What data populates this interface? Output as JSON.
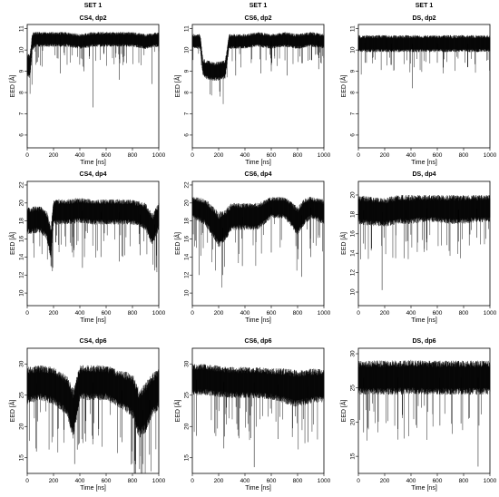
{
  "chart_data": [
    {
      "type": "line",
      "panel": "CS4-dp2",
      "set_label": "SET 1",
      "title": "CS4, dp2",
      "xlabel": "Time [ns]",
      "ylabel": "EED [Å]",
      "xlim": [
        0,
        1000
      ],
      "ylim": [
        5.4,
        11.2
      ],
      "xticks": [
        0,
        200,
        400,
        600,
        800,
        1000
      ],
      "yticks": [
        6,
        7,
        8,
        9,
        10,
        11
      ],
      "series": [
        {
          "x": [
            0,
            20,
            40,
            60,
            100,
            200,
            300,
            400,
            500,
            600,
            700,
            800,
            900,
            1000
          ],
          "y": [
            9.3,
            9.2,
            10.4,
            10.5,
            10.5,
            10.5,
            10.5,
            10.4,
            10.5,
            10.5,
            10.5,
            10.5,
            10.4,
            10.5
          ],
          "spread": [
            0.6,
            0.6,
            0.45,
            0.35,
            0.35,
            0.35,
            0.35,
            0.35,
            0.35,
            0.35,
            0.35,
            0.35,
            0.35,
            0.35
          ],
          "dips": [
            [
              500,
              7.3
            ],
            [
              250,
              8.9
            ],
            [
              700,
              8.6
            ],
            [
              950,
              8.4
            ],
            [
              430,
              9.0
            ]
          ]
        }
      ]
    },
    {
      "type": "line",
      "panel": "CS6-dp2",
      "set_label": "SET 1",
      "title": "CS6, dp2",
      "xlabel": "Time [ns]",
      "ylabel": "EED [Å]",
      "xlim": [
        0,
        1000
      ],
      "ylim": [
        5.4,
        11.2
      ],
      "xticks": [
        0,
        200,
        400,
        600,
        800,
        1000
      ],
      "yticks": [
        6,
        7,
        8,
        9,
        10,
        11
      ],
      "series": [
        {
          "x": [
            0,
            60,
            80,
            100,
            150,
            200,
            250,
            280,
            300,
            400,
            500,
            600,
            700,
            800,
            900,
            1000
          ],
          "y": [
            10.4,
            10.4,
            9.2,
            9.1,
            9.0,
            9.0,
            9.1,
            10.4,
            10.4,
            10.4,
            10.5,
            10.4,
            10.5,
            10.4,
            10.5,
            10.4
          ],
          "spread": [
            0.35,
            0.35,
            0.4,
            0.45,
            0.45,
            0.45,
            0.45,
            0.35,
            0.35,
            0.35,
            0.35,
            0.35,
            0.35,
            0.35,
            0.35,
            0.35
          ],
          "dips": [
            [
              330,
              8.8
            ],
            [
              520,
              8.9
            ],
            [
              600,
              9.0
            ],
            [
              720,
              8.8
            ],
            [
              960,
              9.1
            ]
          ]
        }
      ]
    },
    {
      "type": "line",
      "panel": "DS-dp2",
      "set_label": "SET 1",
      "title": "DS, dp2",
      "xlabel": "Time [ns]",
      "ylabel": "EED [Å]",
      "xlim": [
        0,
        1000
      ],
      "ylim": [
        5.4,
        11.2
      ],
      "xticks": [
        0,
        200,
        400,
        600,
        800,
        1000
      ],
      "yticks": [
        6,
        7,
        8,
        9,
        10,
        11
      ],
      "series": [
        {
          "x": [
            0,
            100,
            200,
            300,
            400,
            500,
            600,
            700,
            800,
            900,
            1000
          ],
          "y": [
            10.3,
            10.3,
            10.3,
            10.3,
            10.3,
            10.3,
            10.3,
            10.3,
            10.3,
            10.3,
            10.3
          ],
          "spread": [
            0.4,
            0.4,
            0.4,
            0.4,
            0.4,
            0.4,
            0.4,
            0.4,
            0.4,
            0.4,
            0.4
          ],
          "dips": [
            [
              410,
              8.2
            ],
            [
              250,
              9.3
            ],
            [
              600,
              9.4
            ],
            [
              830,
              9.2
            ],
            [
              50,
              9.4
            ]
          ]
        }
      ]
    },
    {
      "type": "line",
      "panel": "CS4-dp4",
      "set_label": "",
      "title": "CS4, dp4",
      "xlabel": "Time [ns]",
      "ylabel": "EED [Å]",
      "xlim": [
        0,
        1000
      ],
      "ylim": [
        8.6,
        22.4
      ],
      "xticks": [
        0,
        200,
        400,
        600,
        800,
        1000
      ],
      "yticks": [
        10,
        12,
        14,
        16,
        18,
        20,
        22
      ],
      "series": [
        {
          "x": [
            0,
            100,
            150,
            180,
            200,
            300,
            400,
            500,
            600,
            700,
            800,
            900,
            950,
            1000
          ],
          "y": [
            18.0,
            18.2,
            17.5,
            15.5,
            19.0,
            19.0,
            19.2,
            19.0,
            19.0,
            19.0,
            19.0,
            18.5,
            17.0,
            18.5
          ],
          "spread": [
            1.5,
            1.5,
            1.6,
            1.8,
            1.4,
            1.4,
            1.4,
            1.4,
            1.4,
            1.4,
            1.4,
            1.5,
            1.8,
            1.5
          ],
          "dips": [
            [
              420,
              12.8
            ],
            [
              180,
              13.0
            ],
            [
              970,
              12.5
            ],
            [
              560,
              14.0
            ],
            [
              700,
              13.5
            ],
            [
              860,
              14.2
            ]
          ]
        }
      ]
    },
    {
      "type": "line",
      "panel": "CS6-dp4",
      "set_label": "",
      "title": "CS6, dp4",
      "xlabel": "Time [ns]",
      "ylabel": "EED [Å]",
      "xlim": [
        0,
        1000
      ],
      "ylim": [
        8.6,
        22.4
      ],
      "xticks": [
        0,
        200,
        400,
        600,
        800,
        1000
      ],
      "yticks": [
        10,
        12,
        14,
        16,
        18,
        20,
        22
      ],
      "series": [
        {
          "x": [
            0,
            100,
            200,
            250,
            300,
            400,
            500,
            600,
            700,
            800,
            850,
            900,
            1000
          ],
          "y": [
            19.5,
            19.0,
            17.0,
            17.5,
            18.5,
            18.5,
            18.5,
            19.5,
            19.5,
            18.0,
            19.0,
            19.5,
            19.0
          ],
          "spread": [
            1.2,
            1.5,
            2.0,
            1.8,
            1.5,
            1.5,
            1.5,
            1.2,
            1.2,
            1.6,
            1.5,
            1.2,
            1.4
          ],
          "dips": [
            [
              50,
              12.0
            ],
            [
              230,
              12.0
            ],
            [
              380,
              13.0
            ],
            [
              830,
              11.8
            ],
            [
              600,
              14.5
            ],
            [
              900,
              14.0
            ]
          ]
        }
      ]
    },
    {
      "type": "line",
      "panel": "DS-dp4",
      "set_label": "",
      "title": "DS, dp4",
      "xlabel": "Time [ns]",
      "ylabel": "EED [Å]",
      "xlim": [
        0,
        1000
      ],
      "ylim": [
        8.6,
        21.4
      ],
      "xticks": [
        0,
        200,
        400,
        600,
        800,
        1000
      ],
      "yticks": [
        10,
        12,
        14,
        16,
        18,
        20
      ],
      "series": [
        {
          "x": [
            0,
            100,
            200,
            300,
            400,
            500,
            600,
            700,
            800,
            900,
            1000
          ],
          "y": [
            18.5,
            18.3,
            18.2,
            18.5,
            18.5,
            18.6,
            18.6,
            18.5,
            18.5,
            18.6,
            18.6
          ],
          "spread": [
            1.5,
            1.5,
            1.5,
            1.5,
            1.5,
            1.4,
            1.4,
            1.5,
            1.5,
            1.4,
            1.4
          ],
          "dips": [
            [
              180,
              10.2
            ],
            [
              40,
              15.0
            ],
            [
              360,
              15.2
            ],
            [
              520,
              15.5
            ],
            [
              760,
              15.2
            ],
            [
              900,
              15.6
            ]
          ]
        }
      ]
    },
    {
      "type": "line",
      "panel": "CS4-dp6",
      "set_label": "",
      "title": "CS4, dp6",
      "xlabel": "Time [ns]",
      "ylabel": "EED [Å]",
      "xlim": [
        0,
        1000
      ],
      "ylim": [
        12.5,
        32.5
      ],
      "xticks": [
        0,
        200,
        400,
        600,
        800,
        1000
      ],
      "yticks": [
        15,
        20,
        25,
        30
      ],
      "series": [
        {
          "x": [
            0,
            100,
            200,
            300,
            350,
            400,
            500,
            600,
            700,
            800,
            850,
            900,
            950,
            1000
          ],
          "y": [
            26.5,
            27.0,
            26.5,
            25.0,
            22.0,
            27.0,
            27.0,
            27.0,
            26.0,
            25.0,
            22.0,
            23.0,
            25.0,
            26.0
          ],
          "spread": [
            3.0,
            2.8,
            3.0,
            3.2,
            4.0,
            2.8,
            2.8,
            2.8,
            3.0,
            3.5,
            4.0,
            4.0,
            3.5,
            3.2
          ],
          "dips": [
            [
              70,
              16.0
            ],
            [
              360,
              14.0
            ],
            [
              880,
              14.0
            ],
            [
              930,
              15.5
            ],
            [
              720,
              17.5
            ],
            [
              500,
              18.0
            ]
          ]
        }
      ]
    },
    {
      "type": "line",
      "panel": "CS6-dp6",
      "set_label": "",
      "title": "CS6, dp6",
      "xlabel": "Time [ns]",
      "ylabel": "EED [Å]",
      "xlim": [
        0,
        1000
      ],
      "ylim": [
        12.5,
        32.5
      ],
      "xticks": [
        0,
        200,
        400,
        600,
        800,
        1000
      ],
      "yticks": [
        15,
        20,
        25,
        30
      ],
      "series": [
        {
          "x": [
            0,
            100,
            200,
            300,
            400,
            500,
            600,
            700,
            800,
            900,
            1000
          ],
          "y": [
            27.5,
            27.5,
            27.2,
            27.0,
            27.0,
            27.0,
            26.8,
            26.5,
            26.0,
            26.5,
            26.5
          ],
          "spread": [
            2.5,
            2.5,
            2.5,
            2.5,
            2.5,
            2.5,
            2.5,
            2.8,
            3.0,
            2.8,
            2.6
          ],
          "dips": [
            [
              470,
              13.5
            ],
            [
              30,
              18.5
            ],
            [
              240,
              16.5
            ],
            [
              650,
              18.0
            ],
            [
              880,
              17.5
            ]
          ]
        }
      ]
    },
    {
      "type": "line",
      "panel": "DS-dp6",
      "set_label": "",
      "title": "DS, dp6",
      "xlabel": "Time [ns]",
      "ylabel": "EED [Å]",
      "xlim": [
        0,
        1000
      ],
      "ylim": [
        12.5,
        30.8
      ],
      "xticks": [
        0,
        200,
        400,
        600,
        800,
        1000
      ],
      "yticks": [
        15,
        20,
        25,
        30
      ],
      "series": [
        {
          "x": [
            0,
            100,
            200,
            300,
            400,
            500,
            600,
            700,
            800,
            900,
            1000
          ],
          "y": [
            26.5,
            26.5,
            26.5,
            26.5,
            26.6,
            26.5,
            26.5,
            26.5,
            26.5,
            26.5,
            26.5
          ],
          "spread": [
            2.5,
            2.5,
            2.5,
            2.5,
            2.5,
            2.5,
            2.5,
            2.5,
            2.5,
            2.5,
            2.5
          ],
          "dips": [
            [
              910,
              13.5
            ],
            [
              40,
              18.5
            ],
            [
              300,
              19.0
            ],
            [
              620,
              19.5
            ],
            [
              780,
              19.8
            ]
          ]
        }
      ]
    }
  ]
}
